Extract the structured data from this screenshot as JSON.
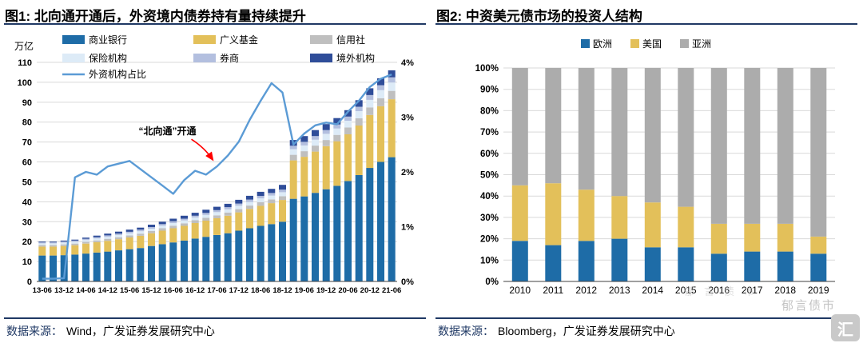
{
  "panels": {
    "left": {
      "title": "图1: 北向通开通后，外资境内债券持有量持续提升",
      "source_label": "数据来源：",
      "source_value": "Wind，广发证券发展研究中心"
    },
    "right": {
      "title": "图2: 中资美元债市场的投资人结构",
      "source_label": "数据来源：",
      "source_value": "Bloomberg，广发证券发展研究中心"
    }
  },
  "watermark": {
    "text": "郁言债市",
    "logo_char": "汇"
  },
  "colors": {
    "rule_navy": "#1F3864",
    "grid": "#D9D9D9",
    "axis": "#404040",
    "annotation_red": "#FF0000"
  },
  "chart_data": [
    {
      "type": "bar",
      "subtype": "stacked-bars-with-line",
      "title": "图1: 北向通开通后，外资境内债券持有量持续提升",
      "unit_label": "万亿",
      "ylim_left": [
        0,
        110
      ],
      "left_tick_step": 10,
      "ylim_right": [
        0,
        4
      ],
      "right_ticks": [
        "0%",
        "1%",
        "2%",
        "3%",
        "4%"
      ],
      "grid": true,
      "legend_position": "top",
      "x": [
        "13-06",
        "13-09",
        "13-12",
        "14-03",
        "14-06",
        "14-09",
        "14-12",
        "15-03",
        "15-06",
        "15-09",
        "15-12",
        "16-03",
        "16-06",
        "16-09",
        "16-12",
        "17-03",
        "17-06",
        "17-09",
        "17-12",
        "18-03",
        "18-06",
        "18-09",
        "18-12",
        "19-03",
        "19-06",
        "19-09",
        "19-12",
        "20-03",
        "20-06",
        "20-09",
        "20-12",
        "21-03",
        "21-06"
      ],
      "x_label_every": 2,
      "series": [
        {
          "name": "商业银行",
          "color": "#1E6CA7",
          "values": [
            13.0,
            13.0,
            13.2,
            13.5,
            14.0,
            14.5,
            15.0,
            15.6,
            16.2,
            16.8,
            17.8,
            18.7,
            19.6,
            20.5,
            21.5,
            22.4,
            23.3,
            24.2,
            25.5,
            26.7,
            27.9,
            28.8,
            30.0,
            41.5,
            42.7,
            44.5,
            46.3,
            48.0,
            50.4,
            53.4,
            57.0,
            60.0,
            62.4
          ]
        },
        {
          "name": "广义基金",
          "color": "#E3C05A",
          "values": [
            4.5,
            4.5,
            4.6,
            4.7,
            5.0,
            5.2,
            5.4,
            5.6,
            5.9,
            6.1,
            6.4,
            6.8,
            7.1,
            7.4,
            7.8,
            8.1,
            8.4,
            8.8,
            9.2,
            9.7,
            10.1,
            10.5,
            10.9,
            19.3,
            19.9,
            20.7,
            21.6,
            22.4,
            23.5,
            24.9,
            26.6,
            28.0,
            29.1
          ]
        },
        {
          "name": "信用社",
          "color": "#BFBFBF",
          "values": [
            0.8,
            0.8,
            0.8,
            0.8,
            0.9,
            0.9,
            1.0,
            1.0,
            1.0,
            1.1,
            1.1,
            1.2,
            1.3,
            1.3,
            1.4,
            1.4,
            1.5,
            1.6,
            1.6,
            1.7,
            1.8,
            1.9,
            1.9,
            2.8,
            2.8,
            3.0,
            3.1,
            3.2,
            3.4,
            3.6,
            3.8,
            4.0,
            4.2
          ]
        },
        {
          "name": "保险机构",
          "color": "#DDEBF7",
          "values": [
            0.8,
            0.8,
            0.9,
            0.9,
            0.9,
            1.0,
            1.0,
            1.1,
            1.1,
            1.2,
            1.2,
            1.3,
            1.3,
            1.4,
            1.4,
            1.5,
            1.6,
            1.6,
            1.7,
            1.8,
            1.9,
            1.9,
            2.0,
            2.8,
            2.9,
            3.0,
            3.1,
            3.2,
            3.4,
            3.6,
            3.8,
            4.0,
            4.2
          ]
        },
        {
          "name": "券商",
          "color": "#B3BFDF",
          "values": [
            0.5,
            0.5,
            0.5,
            0.6,
            0.6,
            0.6,
            0.7,
            0.7,
            0.7,
            0.8,
            0.8,
            0.8,
            0.9,
            0.9,
            0.9,
            1.0,
            1.0,
            1.1,
            1.1,
            1.2,
            1.2,
            1.3,
            1.3,
            1.7,
            1.8,
            1.8,
            1.9,
            2.0,
            2.1,
            2.2,
            2.4,
            2.5,
            2.6
          ]
        },
        {
          "name": "境外机构",
          "color": "#2F4D99",
          "values": [
            0.4,
            0.4,
            0.5,
            0.5,
            0.6,
            0.8,
            0.9,
            1.0,
            1.1,
            1.0,
            1.2,
            1.2,
            1.3,
            1.5,
            1.5,
            1.6,
            1.7,
            1.7,
            1.9,
            1.9,
            2.1,
            2.1,
            2.4,
            2.9,
            2.9,
            3.0,
            3.0,
            3.2,
            3.2,
            3.3,
            3.4,
            3.5,
            3.5
          ]
        }
      ],
      "line_series": {
        "name": "外资机构占比",
        "color": "#5B9BD5",
        "axis": "right",
        "values": [
          0.05,
          0.05,
          0.06,
          1.9,
          2.0,
          1.95,
          2.1,
          2.15,
          2.2,
          2.05,
          1.9,
          1.75,
          1.6,
          1.85,
          2.02,
          1.95,
          2.1,
          2.3,
          2.55,
          2.95,
          3.3,
          3.62,
          3.45,
          2.5,
          2.7,
          2.85,
          2.9,
          2.87,
          3.1,
          3.3,
          3.55,
          3.7,
          3.78
        ]
      },
      "annotation": {
        "text": "“北向通”开通",
        "arrow_color": "#FF0000",
        "target_x": "17-06"
      }
    },
    {
      "type": "bar",
      "subtype": "stacked-100",
      "title": "图2: 中资美元债市场的投资人结构",
      "categories": [
        "2010",
        "2011",
        "2012",
        "2013",
        "2014",
        "2015",
        "2016",
        "2017",
        "2018",
        "2019"
      ],
      "ylim": [
        0,
        100
      ],
      "y_tick_step": 10,
      "y_tick_suffix": "%",
      "grid": true,
      "legend_position": "top",
      "series": [
        {
          "name": "欧洲",
          "color": "#1E6CA7",
          "values": [
            19,
            17,
            19,
            20,
            16,
            16,
            13,
            14,
            14,
            13
          ]
        },
        {
          "name": "美国",
          "color": "#E3C05A",
          "values": [
            26,
            29,
            24,
            20,
            21,
            19,
            14,
            13,
            13,
            8
          ]
        },
        {
          "name": "亚洲",
          "color": "#ACACAC",
          "values": [
            55,
            54,
            57,
            60,
            63,
            65,
            73,
            73,
            73,
            79
          ]
        }
      ]
    }
  ]
}
